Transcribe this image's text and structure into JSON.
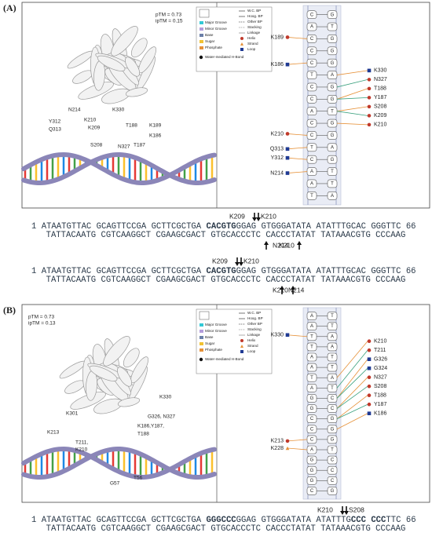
{
  "legend": {
    "left": [
      {
        "label": "Major Groove",
        "color": "#33c9d6"
      },
      {
        "label": "Minor Groove",
        "color": "#b39ddb"
      },
      {
        "label": "Base",
        "color": "#6b7fa8"
      },
      {
        "label": "Sugar",
        "color": "#f1c232"
      },
      {
        "label": "Phosphate",
        "color": "#e69138"
      },
      {
        "label": "Water-mediated H-Bond",
        "color": "#111111"
      }
    ],
    "right": [
      {
        "label": "W.C. BP",
        "color": "#555555",
        "shape": "line"
      },
      {
        "label": "Hoog. BP",
        "color": "#555555",
        "shape": "line"
      },
      {
        "label": "Other BP",
        "color": "#555555",
        "shape": "dash"
      },
      {
        "label": "Stacking",
        "color": "#999999",
        "shape": "dash"
      },
      {
        "label": "Linkage",
        "color": "#999999",
        "shape": "line"
      },
      {
        "label": "Helix",
        "color": "#c0392b",
        "shape": "circle"
      },
      {
        "label": "Strand",
        "color": "#e69138",
        "shape": "triangle"
      },
      {
        "label": "Loop",
        "color": "#1f3a93",
        "shape": "square"
      }
    ]
  },
  "panels": [
    {
      "label": "(A)",
      "scores": [
        "pTM = 0.73",
        "ipTM = 0.15"
      ],
      "structure_labels": [
        "Y312",
        "Q313",
        "N214",
        "K210",
        "K209",
        "K330",
        "T188",
        "K189",
        "K186",
        "S208",
        "N327",
        "T187"
      ],
      "pairs": [
        [
          "C",
          "G"
        ],
        [
          "A",
          "T"
        ],
        [
          "C",
          "G"
        ],
        [
          "C",
          "G"
        ],
        [
          "C",
          "G"
        ],
        [
          "T",
          "A"
        ],
        [
          "C",
          "G"
        ],
        [
          "C",
          "G"
        ],
        [
          "A",
          "T"
        ],
        [
          "C",
          "G"
        ],
        [
          "C",
          "G"
        ],
        [
          "T",
          "A"
        ],
        [
          "C",
          "G"
        ],
        [
          "A",
          "T"
        ],
        [
          "A",
          "T"
        ],
        [
          "T",
          "A"
        ]
      ],
      "left_residues": [
        {
          "name": "K189",
          "pair": 2,
          "shape": "circle",
          "color": "#c0392b"
        },
        {
          "name": "K186",
          "pair": 4,
          "shape": "square",
          "color": "#1f3a93"
        },
        {
          "name": "K210",
          "pair": 10,
          "shape": "circle",
          "color": "#c0392b"
        },
        {
          "name": "Q313",
          "pair": 11,
          "shape": "square",
          "color": "#1f3a93"
        },
        {
          "name": "Y312",
          "pair": 12,
          "shape": "square",
          "color": "#1f3a93"
        },
        {
          "name": "N214",
          "pair": 13,
          "shape": "square",
          "color": "#1f3a93"
        }
      ],
      "right_residues": [
        {
          "name": "K330",
          "pair": 5,
          "shape": "square",
          "color": "#1f3a93"
        },
        {
          "name": "N327",
          "pair": 6,
          "shape": "circle",
          "color": "#c0392b"
        },
        {
          "name": "T188",
          "pair": 7,
          "shape": "circle",
          "color": "#c0392b"
        },
        {
          "name": "Y187",
          "pair": 7,
          "shape": "circle",
          "color": "#c0392b"
        },
        {
          "name": "S208",
          "pair": 8,
          "shape": "circle",
          "color": "#c0392b"
        },
        {
          "name": "K209",
          "pair": 8,
          "shape": "circle",
          "color": "#c0392b"
        },
        {
          "name": "K210",
          "pair": 9,
          "shape": "circle",
          "color": "#c0392b"
        }
      ],
      "sequences": [
        {
          "top": [
            "K209",
            "K210"
          ],
          "bottom": [
            "K210",
            "N214"
          ],
          "top_strand": [
            {
              "text": "1 ATAATGTTAC GCAGTTCCGA GCTTCGCTGA ",
              "bold": false
            },
            {
              "text": "CACGTG",
              "bold": true
            },
            {
              "text": "GGAG GTGGGATATA ATATTTGCAC GGGTTC 66",
              "bold": false
            }
          ],
          "bottom_strand": "TATTACAATG CGTCAAGGCT CGAAGCGACT GTGCACCCTC CACCCTATAT TATAAACGTG CCCAAG"
        },
        {
          "top": [
            "K209",
            "K210"
          ],
          "bottom": [
            "K210",
            "N214"
          ],
          "top_strand": [
            {
              "text": "1 ATAATGTTAC GCAGTTCCGA GCTTCGCTGA ",
              "bold": false
            },
            {
              "text": "CACGTG",
              "bold": true
            },
            {
              "text": "GGAG GTGGGATATA ATATTTGCAC GGGTTC 66",
              "bold": false
            }
          ],
          "bottom_strand": "TATTACAATG CGTCAAGGCT CGAAGCGACT GTGCACCCTC CACCCTATAT TATAAACGTG CCCAAG"
        }
      ]
    },
    {
      "label": "(B)",
      "scores": [
        "pTM = 0.73",
        "ipTM = 0.13"
      ],
      "structure_labels": [
        "K330",
        "K301",
        "K213",
        "T211,",
        "K210",
        "G326, N327",
        "K186,Y187,",
        "T188",
        "G57",
        "T56"
      ],
      "pairs": [
        [
          "A",
          "T"
        ],
        [
          "A",
          "T"
        ],
        [
          "T",
          "A"
        ],
        [
          "T",
          "A"
        ],
        [
          "A",
          "T"
        ],
        [
          "A",
          "T"
        ],
        [
          "T",
          "A"
        ],
        [
          "A",
          "T"
        ],
        [
          "G",
          "C"
        ],
        [
          "G",
          "C"
        ],
        [
          "C",
          "G"
        ],
        [
          "C",
          "G"
        ],
        [
          "C",
          "G"
        ],
        [
          "A",
          "T"
        ],
        [
          "G",
          "C"
        ],
        [
          "G",
          "C"
        ],
        [
          "G",
          "C"
        ],
        [
          "C",
          "G"
        ]
      ],
      "left_residues": [
        {
          "name": "K330",
          "pair": 2,
          "shape": "square",
          "color": "#1f3a93"
        },
        {
          "name": "K213",
          "pair": 12,
          "shape": "circle",
          "color": "#c0392b"
        },
        {
          "name": "K228",
          "pair": 13,
          "shape": "triangle",
          "color": "#e69138"
        }
      ],
      "right_residues": [
        {
          "name": "K210",
          "pair": 6,
          "shape": "circle",
          "color": "#c0392b"
        },
        {
          "name": "T211",
          "pair": 7,
          "shape": "circle",
          "color": "#c0392b"
        },
        {
          "name": "G326",
          "pair": 8,
          "shape": "square",
          "color": "#1f3a93"
        },
        {
          "name": "G324",
          "pair": 8,
          "shape": "square",
          "color": "#1f3a93"
        },
        {
          "name": "N327",
          "pair": 9,
          "shape": "circle",
          "color": "#c0392b"
        },
        {
          "name": "S208",
          "pair": 9,
          "shape": "circle",
          "color": "#c0392b"
        },
        {
          "name": "T188",
          "pair": 10,
          "shape": "circle",
          "color": "#c0392b"
        },
        {
          "name": "Y187",
          "pair": 10,
          "shape": "circle",
          "color": "#c0392b"
        },
        {
          "name": "K186",
          "pair": 11,
          "shape": "square",
          "color": "#1f3a93"
        }
      ],
      "sequences": [
        {
          "top": [
            "K210",
            "S208"
          ],
          "bottom": [],
          "top_strand": [
            {
              "text": "1 ATAATGTTAC GCAGTTCCGA GCTTCGCTGA ",
              "bold": false
            },
            {
              "text": "GGGCCC",
              "bold": true
            },
            {
              "text": "GGAG GTGGGATATA ATATTTG",
              "bold": false
            },
            {
              "text": "CCC CCC",
              "bold": true
            },
            {
              "text": "TTC 66",
              "bold": false
            }
          ],
          "bottom_strand": "TATTACAATG CGTCAAGGCT CGAAGCGACT GTGCACCCTC CACCCTATAT TATAAACGTG CCCAAG"
        }
      ]
    }
  ]
}
